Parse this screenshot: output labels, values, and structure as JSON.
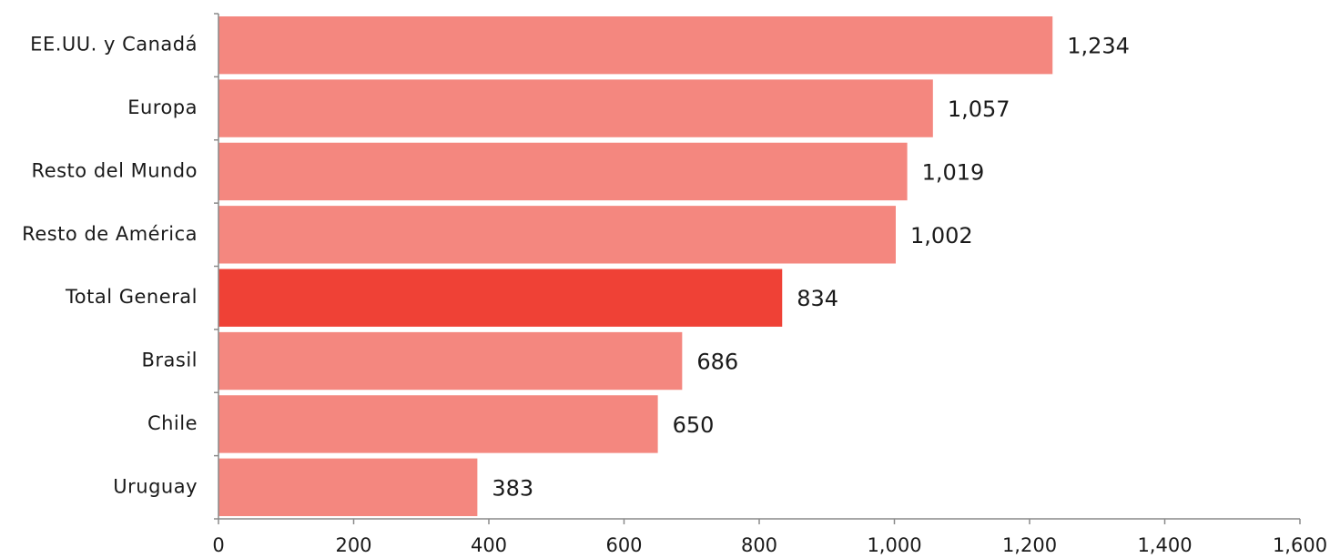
{
  "chart_data": {
    "type": "bar",
    "orientation": "horizontal",
    "categories": [
      "EE.UU. y Canadá",
      "Europa",
      "Resto del Mundo",
      "Resto de América",
      "Total General",
      "Brasil",
      "Chile",
      "Uruguay"
    ],
    "values": [
      1234,
      1057,
      1019,
      1002,
      834,
      686,
      650,
      383
    ],
    "value_labels": [
      "1,234",
      "1,057",
      "1,019",
      "1,002",
      "834",
      "686",
      "650",
      "383"
    ],
    "highlight_index": 4,
    "colors": {
      "bar": "#f4877f",
      "highlight": "#ef4136"
    },
    "xlim": [
      0,
      1600
    ],
    "xticks": [
      0,
      200,
      400,
      600,
      800,
      1000,
      1200,
      1400,
      1600
    ],
    "xtick_labels": [
      "0",
      "200",
      "400",
      "600",
      "800",
      "1,000",
      "1,200",
      "1,400",
      "1,600"
    ],
    "title": "",
    "xlabel": "",
    "ylabel": "",
    "grid": false,
    "legend": "none"
  }
}
